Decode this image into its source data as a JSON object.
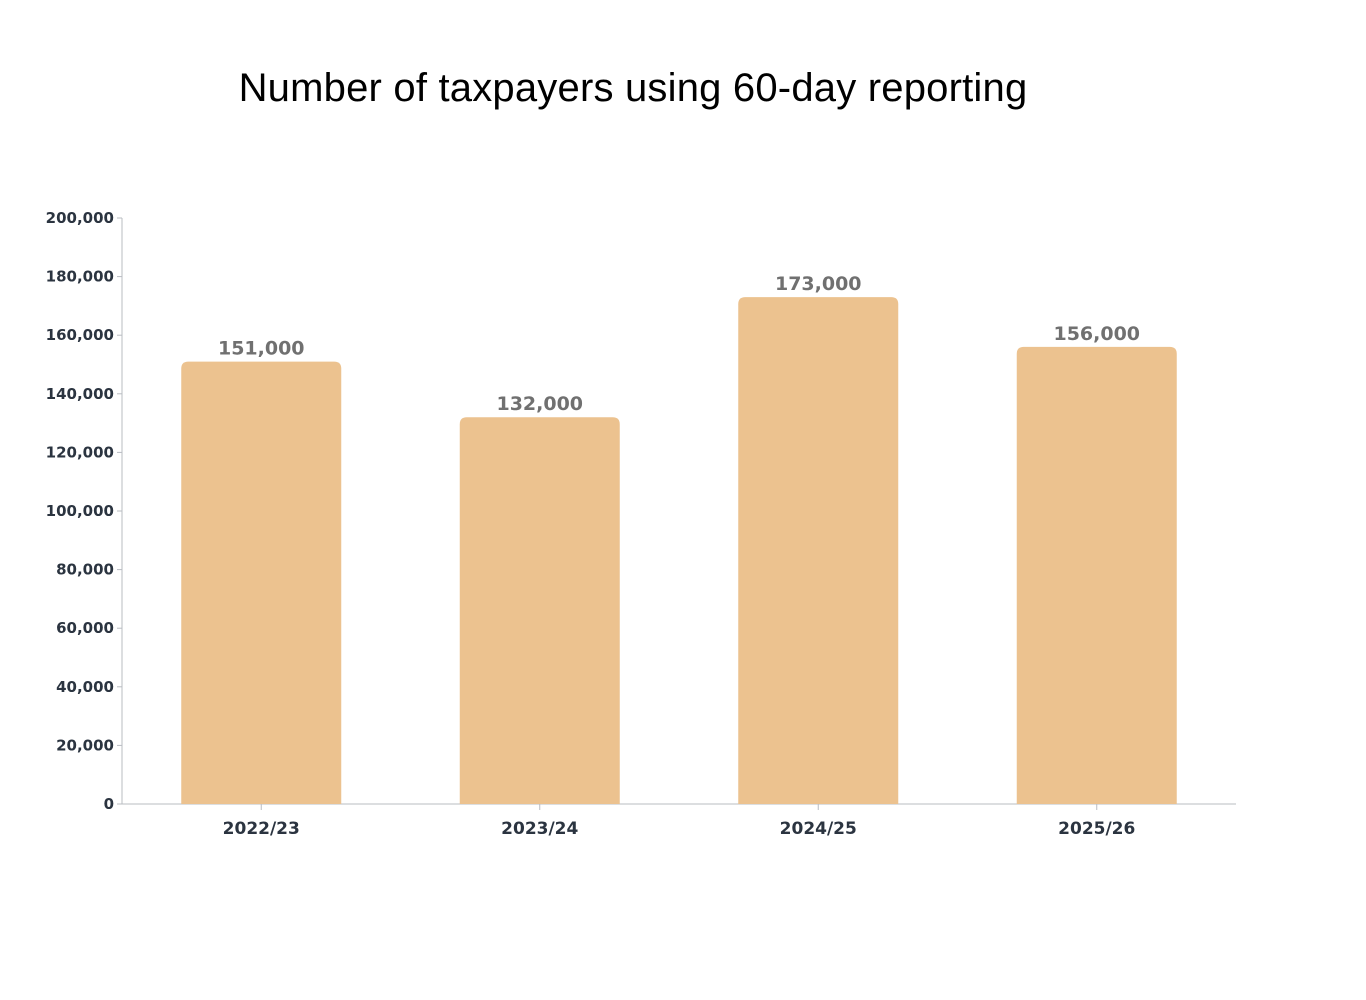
{
  "chart_data": {
    "type": "bar",
    "title": "Number of taxpayers using 60-day reporting",
    "categories": [
      "2022/23",
      "2023/24",
      "2024/25",
      "2025/26"
    ],
    "values": [
      151000,
      132000,
      173000,
      156000
    ],
    "data_labels": [
      "151,000",
      "132,000",
      "173,000",
      "156,000"
    ],
    "y_ticks": [
      0,
      20000,
      40000,
      60000,
      80000,
      100000,
      120000,
      140000,
      160000,
      180000,
      200000
    ],
    "y_tick_labels": [
      "0",
      "20,000",
      "40,000",
      "60,000",
      "80,000",
      "100,000",
      "120,000",
      "140,000",
      "160,000",
      "180,000",
      "200,000"
    ],
    "xlabel": "",
    "ylabel": "",
    "ylim": [
      0,
      200000
    ],
    "grid": false,
    "legend": "none",
    "colors": {
      "bar": "#ecc28f",
      "axis": "#b8bcc2",
      "tick_text": "#2b3440",
      "data_label_text": "#707070"
    }
  }
}
